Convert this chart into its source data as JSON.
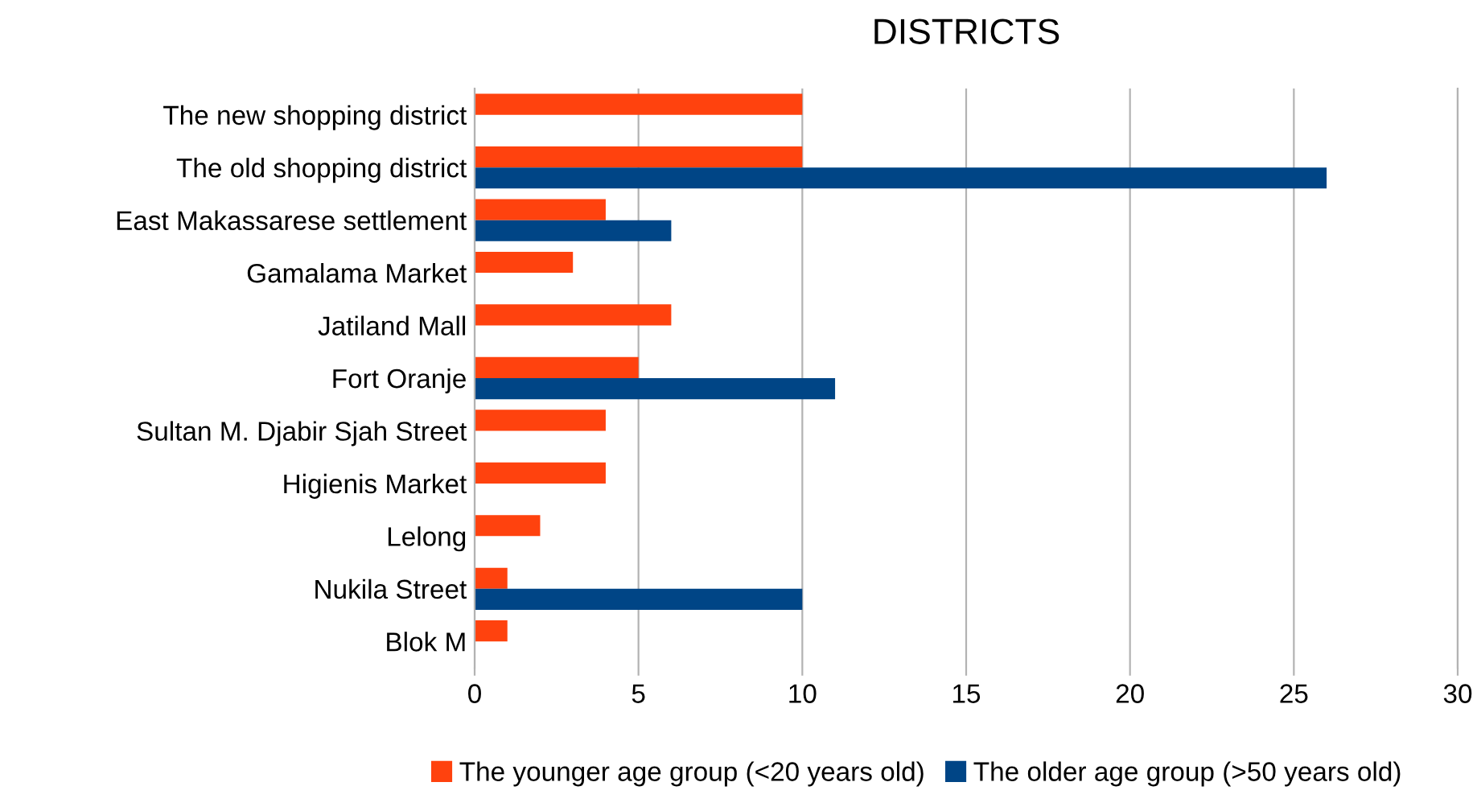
{
  "chart_data": {
    "type": "bar",
    "orientation": "horizontal",
    "title": "DISTRICTS",
    "categories": [
      "The new shopping district",
      "The old shopping district",
      "East Makassarese settlement",
      "Gamalama Market",
      "Jatiland Mall",
      "Fort Oranje",
      "Sultan M. Djabir Sjah Street",
      "Higienis Market",
      "Lelong",
      "Nukila Street",
      "Blok M"
    ],
    "series": [
      {
        "name": "The younger age group (<20 years old)",
        "color": "#ff420e",
        "values": [
          10,
          10,
          4,
          3,
          6,
          5,
          4,
          4,
          2,
          1,
          1
        ]
      },
      {
        "name": "The older age group (>50 years old)",
        "color": "#004586",
        "values": [
          null,
          26,
          6,
          null,
          null,
          11,
          null,
          null,
          null,
          10,
          null
        ]
      }
    ],
    "xlim": [
      0,
      30
    ],
    "xticks": [
      0,
      5,
      10,
      15,
      20,
      25,
      30
    ],
    "grid": "x",
    "legend": "bottom"
  }
}
